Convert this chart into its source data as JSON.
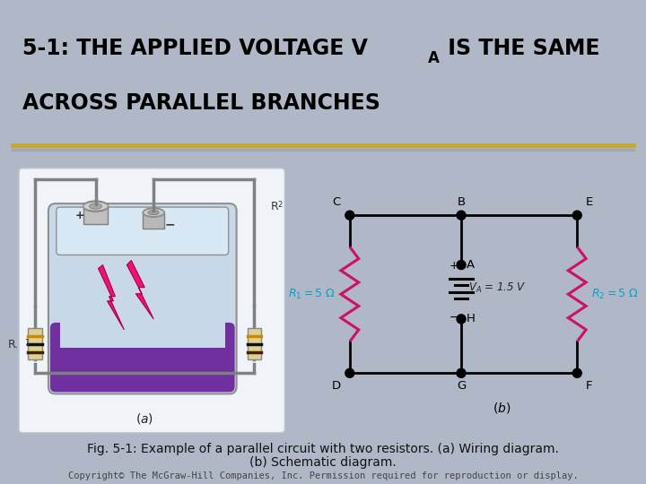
{
  "title_line1": "5-1: THE APPLIED VOLTAGE V",
  "title_sub": "A",
  "title_line2": "ACROSS PARALLEL BRANCHES",
  "caption_line1": "Fig. 5-1: Example of a parallel circuit with two resistors. (a) Wiring diagram.",
  "caption_line2": "(b) Schematic diagram.",
  "copyright": "Copyright© The McGraw-Hill Companies, Inc. Permission required for reproduction or display.",
  "bg_outer": "#b0b8c8",
  "bg_inner": "#ffffff",
  "header_bg": "#ffffff",
  "gold_line": "#c8a832",
  "gray_stripe": "#a0a8b0",
  "title_color": "#000000",
  "title_fontsize": 17,
  "caption_fontsize": 10,
  "copyright_fontsize": 7.5,
  "node_color": "#000000",
  "wire_color": "#000000",
  "resistor_color": "#cc1166",
  "battery_color": "#000000",
  "cyan_label": "#00a0cc",
  "node_label_color": "#000000",
  "R1_label": "R_1 = 5 \\Omega",
  "R2_label": "R_2 = 5 \\Omega",
  "VA_label": "V_A = 1.5 V",
  "bat_body_light": "#c8d8e8",
  "bat_body_mid": "#b0c0d0",
  "bat_purple": "#7030a0",
  "bat_wire_color": "#808080",
  "bat_term_color": "#b0b0b0",
  "bat_pink": "#ee1177",
  "res_body": "#e8d898",
  "res_band1": "#442200",
  "res_band2": "#111111",
  "res_band3": "#cc8800"
}
